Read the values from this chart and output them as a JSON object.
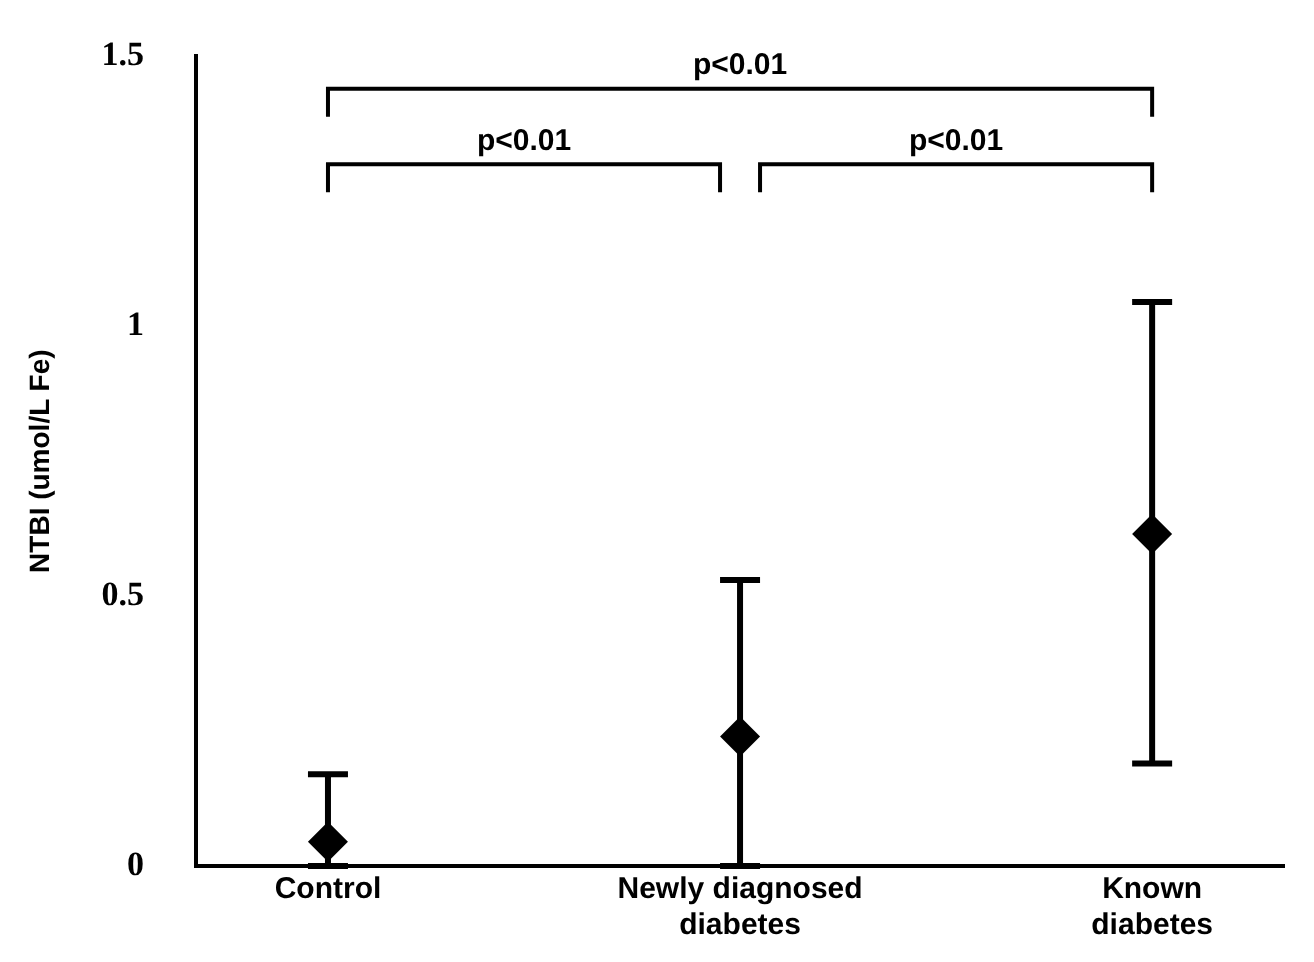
{
  "chart_data": {
    "type": "scatter",
    "categories": [
      "Control",
      "Newly diagnosed diabetes",
      "Known diabetes"
    ],
    "values": [
      0.045,
      0.24,
      0.615
    ],
    "errors": [
      [
        0,
        0.17
      ],
      [
        0,
        0.53
      ],
      [
        0.19,
        1.045
      ]
    ],
    "color": "#000000",
    "marker": "diamond",
    "ylabel": "NTBI (umol/L Fe)",
    "ylim": [
      0,
      1.5
    ],
    "yticks": [
      0,
      0.5,
      1,
      1.5
    ],
    "annotations": [
      "p<0.01",
      "p<0.01",
      "p<0.01"
    ],
    "grid": false,
    "legend": false
  }
}
